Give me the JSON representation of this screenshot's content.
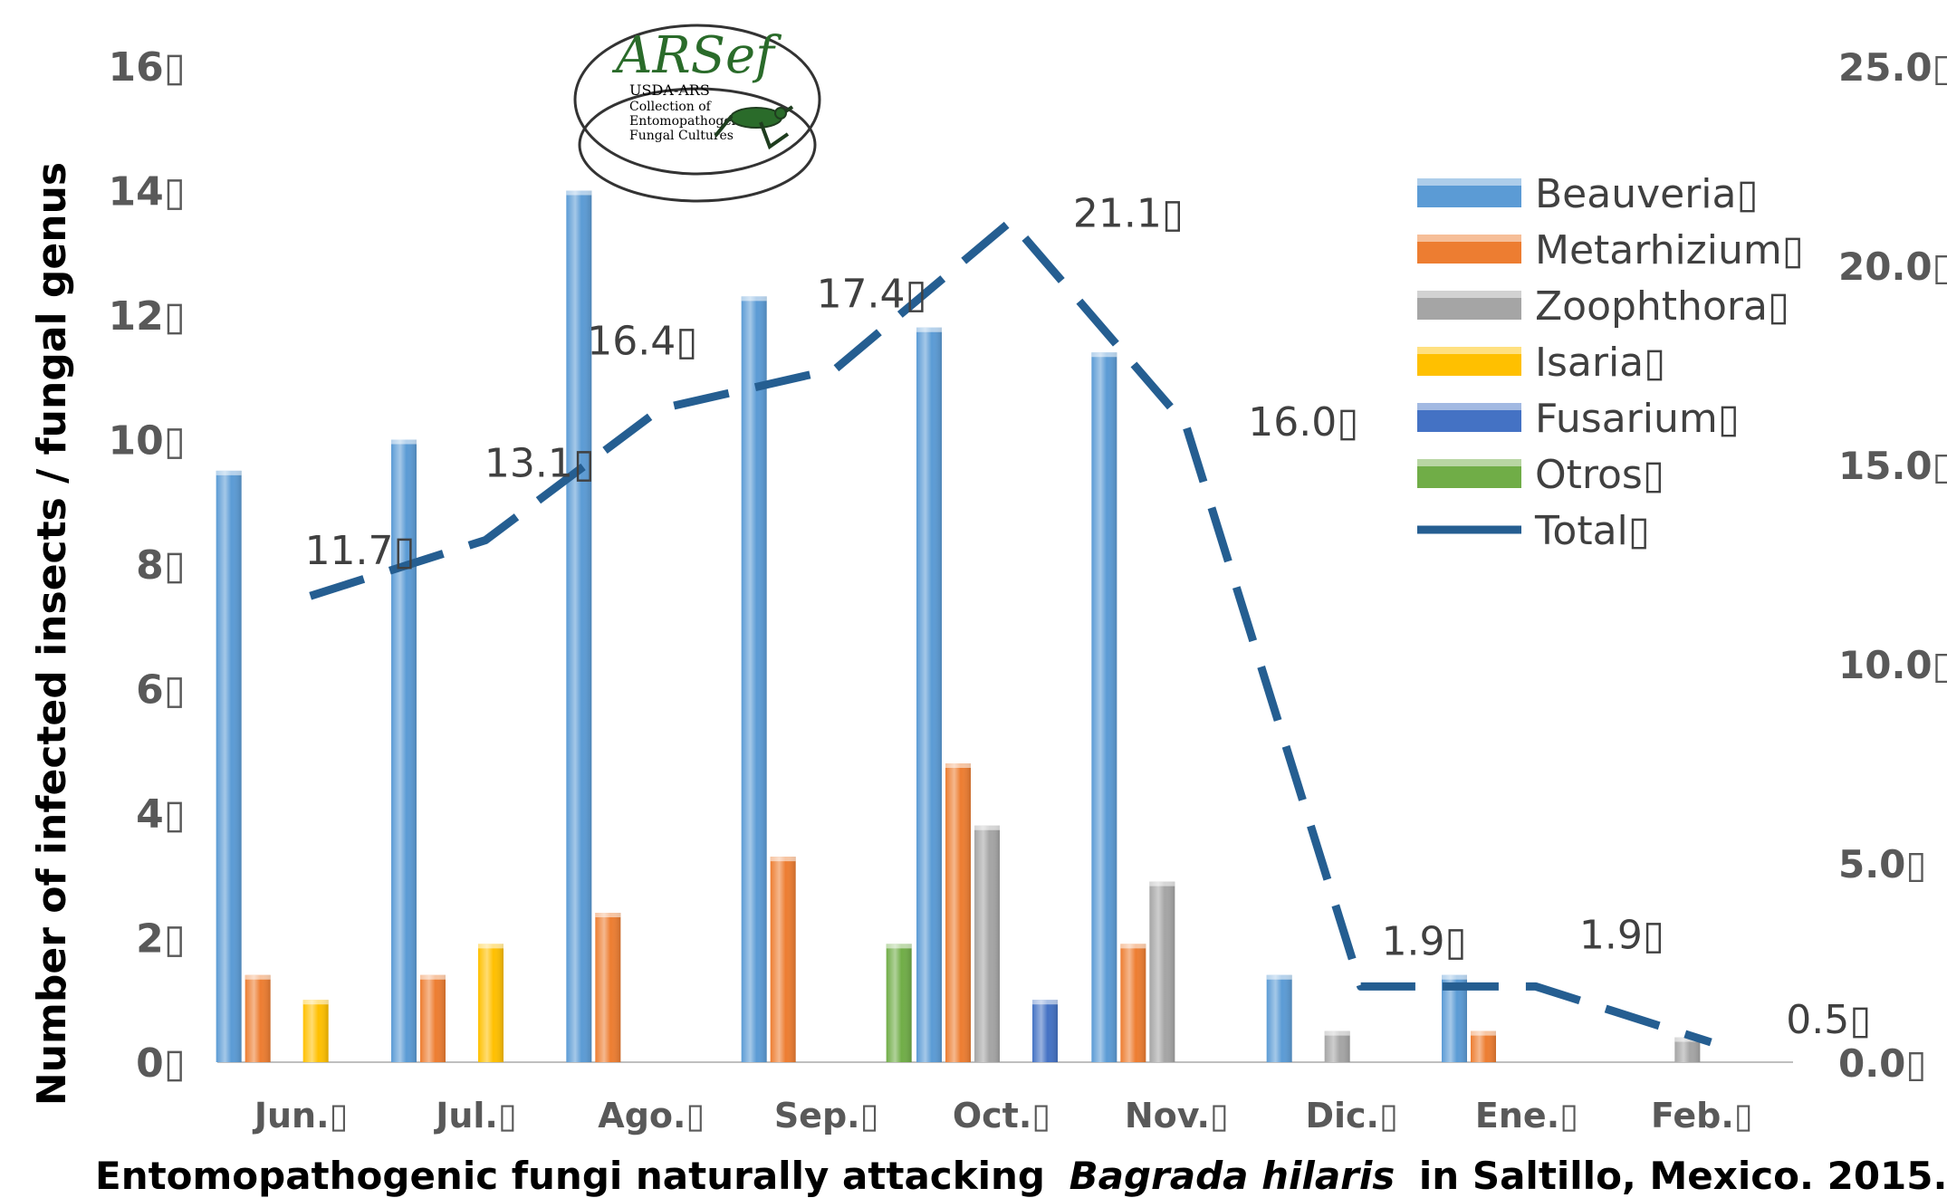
{
  "chart_data": {
    "type": "bar",
    "title": "Entomopathogenic fungi naturally attacking",
    "title_species": "Bagrada hilaris",
    "title_suffix": "in Saltillo, Mexico. 2015.",
    "ylabel": "Number of infected insects / fungal genus",
    "ylim": [
      0,
      16
    ],
    "y_ticks": [
      "0",
      "2",
      "4",
      "6",
      "8",
      "10",
      "12",
      "14",
      "16"
    ],
    "y2lim": [
      0,
      25
    ],
    "y2_ticks": [
      "0.0",
      "5.0",
      "10.0",
      "15.0",
      "20.0",
      "25.0"
    ],
    "categories": [
      "Jun.",
      "Jul.",
      "Ago.",
      "Sep.",
      "Oct.",
      "Nov.",
      "Dic.",
      "Ene.",
      "Feb."
    ],
    "series": [
      {
        "name": "Beauveria",
        "color": "#5B9BD5",
        "values": [
          9.5,
          10,
          14,
          12.3,
          11.8,
          11.4,
          1.4,
          1.4,
          0
        ]
      },
      {
        "name": "Metarhizium",
        "color": "#ED7D31",
        "values": [
          1.4,
          1.4,
          2.4,
          3.3,
          4.8,
          1.9,
          0,
          0.5,
          0
        ]
      },
      {
        "name": "Zoophthora",
        "color": "#A5A5A5",
        "values": [
          0,
          0,
          0,
          0,
          3.8,
          2.9,
          0.5,
          0,
          0.4
        ]
      },
      {
        "name": "Isaria",
        "color": "#FFC000",
        "values": [
          1.0,
          1.9,
          0,
          0,
          0,
          0,
          0,
          0,
          0
        ]
      },
      {
        "name": "Fusarium",
        "color": "#4472C4",
        "values": [
          0,
          0,
          0,
          0,
          1.0,
          0,
          0,
          0,
          0
        ]
      },
      {
        "name": "Otros",
        "color": "#70AD47",
        "values": [
          0,
          0,
          0,
          1.9,
          0,
          0,
          0,
          0,
          0
        ]
      }
    ],
    "line_series": {
      "name": "Total",
      "color": "#255E91",
      "axis": "secondary",
      "values": [
        11.7,
        13.1,
        16.4,
        17.4,
        21.1,
        16.0,
        1.9,
        1.9,
        0.5
      ],
      "labels": [
        "11.7",
        "13.1",
        "16.4",
        "17.4",
        "21.1",
        "16.0",
        "1.9",
        "1.9",
        "0.5"
      ]
    },
    "grid": false,
    "legend_position": "right"
  },
  "logo": {
    "name": "ARSef",
    "lines": [
      "USDA-ARS",
      "Collection of",
      "Entomopathogenic",
      "Fungal Cultures"
    ]
  },
  "missing_glyph": "▯"
}
